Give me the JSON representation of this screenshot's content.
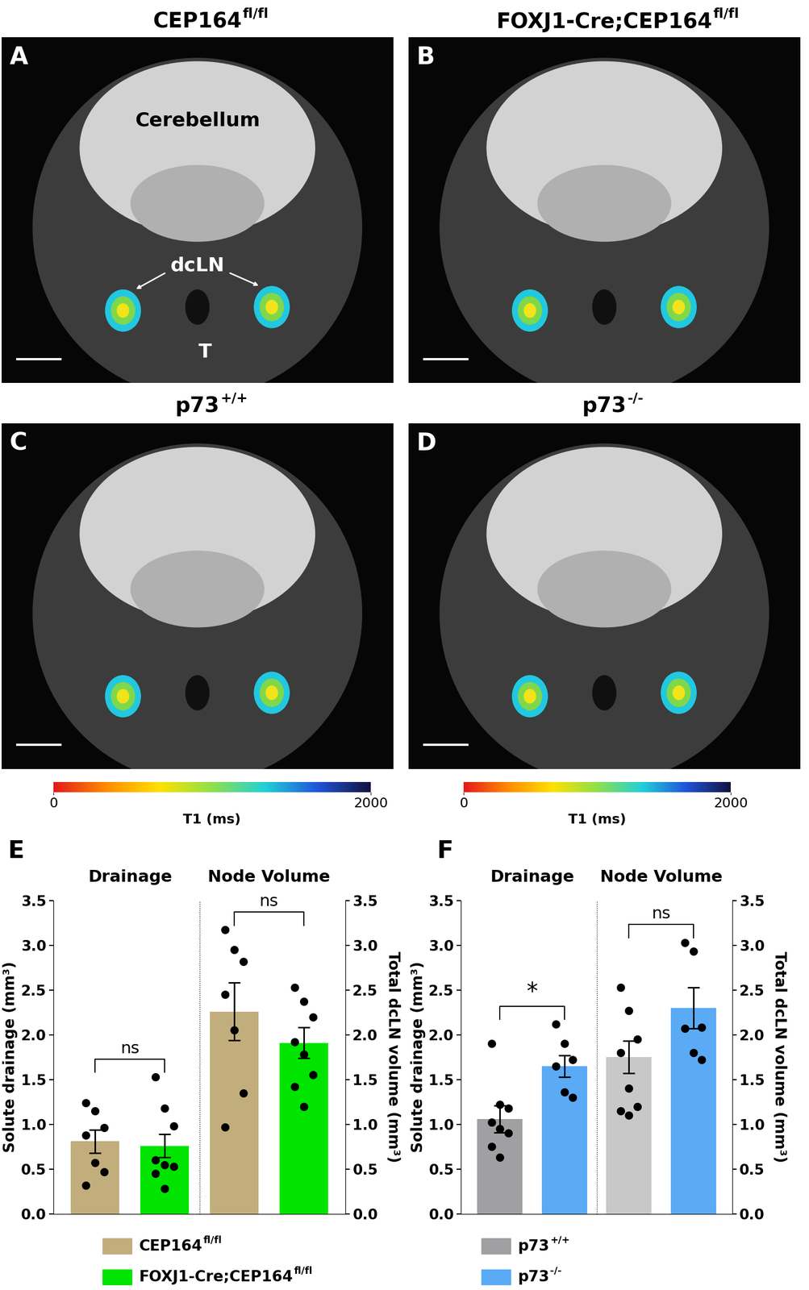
{
  "panels": [
    {
      "letter": "A",
      "title": "CEP164",
      "title_sup": "fl/fl",
      "labels": {
        "region": "Cerebellum",
        "node": "dcLN",
        "tongue": "T"
      }
    },
    {
      "letter": "B",
      "title": "FOXJ1-Cre;CEP164",
      "title_sup": "fl/fl"
    },
    {
      "letter": "C",
      "title": "p73",
      "title_sup": "+/+"
    },
    {
      "letter": "D",
      "title": "p73",
      "title_sup": "-/-"
    }
  ],
  "colorbar": {
    "label": "T1 (ms)",
    "range": [
      0,
      2000
    ],
    "ticks": [
      0,
      2000
    ]
  },
  "chart_data": [
    {
      "type": "bar",
      "letter": "E",
      "ylabel": "Solute drainage (mm³)",
      "y2label": "Total dcLN volume (mm³)",
      "ylim": [
        0,
        3.5
      ],
      "yticks": [
        {
          "value": 0,
          "label": "0.0"
        },
        0.5,
        {
          "value": 1,
          "label": "1.0"
        },
        1.5,
        {
          "value": 2,
          "label": "2.0"
        },
        2.5,
        {
          "value": 3,
          "label": "3.0"
        },
        3.5
      ],
      "y2lim": [
        0,
        3.5
      ],
      "y2ticks": [
        {
          "value": 0,
          "label": "0.0"
        },
        0.5,
        {
          "value": 1,
          "label": "1.0"
        },
        1.5,
        {
          "value": 2,
          "label": "2.0"
        },
        2.5,
        {
          "value": 3,
          "label": "3.0"
        },
        3.5
      ],
      "series": [
        {
          "name": "CEP164",
          "sup": "fl/fl",
          "color": "#c2ae7c"
        },
        {
          "name": "FOXJ1-Cre;CEP164",
          "sup": "fl/fl",
          "color": "#00e400"
        }
      ],
      "groups": [
        {
          "title": "Drainage",
          "axis": "y",
          "values": [
            0.81,
            0.76
          ],
          "errors": [
            0.13,
            0.13
          ],
          "points": [
            [
              1.24,
              1.15,
              0.96,
              0.88,
              0.57,
              0.47,
              0.32
            ],
            [
              1.53,
              1.18,
              0.98,
              0.6,
              0.55,
              0.53,
              0.45,
              0.28
            ]
          ],
          "colors": [
            "#c2ae7c",
            "#00e400"
          ],
          "significance": "ns"
        },
        {
          "title": "Node Volume",
          "axis": "y2",
          "values": [
            2.26,
            1.91
          ],
          "errors": [
            0.32,
            0.17
          ],
          "points": [
            [
              3.17,
              2.95,
              2.82,
              2.45,
              2.05,
              1.35,
              0.97
            ],
            [
              2.53,
              2.37,
              2.2,
              1.92,
              1.78,
              1.55,
              1.42,
              1.2
            ]
          ],
          "colors": [
            "#c2ae7c",
            "#00e400"
          ],
          "significance": "ns"
        }
      ]
    },
    {
      "type": "bar",
      "letter": "F",
      "ylabel": "Solute drainage (mm³)",
      "y2label": "Total dcLN volume (mm³)",
      "ylim": [
        0,
        3.5
      ],
      "yticks": [
        {
          "value": 0,
          "label": "0.0"
        },
        0.5,
        {
          "value": 1,
          "label": "1.0"
        },
        1.5,
        {
          "value": 2,
          "label": "2.0"
        },
        2.5,
        {
          "value": 3,
          "label": "3.0"
        },
        3.5
      ],
      "y2lim": [
        0,
        3.5
      ],
      "y2ticks": [
        {
          "value": 0,
          "label": "0.0"
        },
        0.5,
        {
          "value": 1,
          "label": "1.0"
        },
        1.5,
        {
          "value": 2,
          "label": "2.0"
        },
        2.5,
        {
          "value": 3,
          "label": "3.0"
        },
        3.5
      ],
      "series": [
        {
          "name": "p73",
          "sup": "+/+",
          "color": "#a0a0a2"
        },
        {
          "name": "p73",
          "sup": "-/-",
          "color": "#5aaaf5"
        }
      ],
      "groups": [
        {
          "title": "Drainage",
          "axis": "y",
          "values": [
            1.06,
            1.65
          ],
          "errors": [
            0.15,
            0.12
          ],
          "points": [
            [
              1.9,
              1.22,
              1.18,
              1.02,
              0.95,
              0.9,
              0.75,
              0.63
            ],
            [
              2.12,
              1.9,
              1.72,
              1.65,
              1.36,
              1.3
            ]
          ],
          "colors": [
            "#a0a0a2",
            "#5aaaf5"
          ],
          "significance": "*"
        },
        {
          "title": "Node Volume",
          "axis": "y2",
          "values": [
            1.75,
            2.3
          ],
          "errors": [
            0.18,
            0.23
          ],
          "points": [
            [
              2.53,
              2.27,
              1.95,
              1.8,
              1.4,
              1.2,
              1.15,
              1.1
            ],
            [
              3.03,
              2.93,
              2.08,
              2.07,
              1.8,
              1.72
            ]
          ],
          "colors": [
            "#c8c8c8",
            "#5aaaf5"
          ],
          "significance": "ns"
        }
      ]
    }
  ]
}
